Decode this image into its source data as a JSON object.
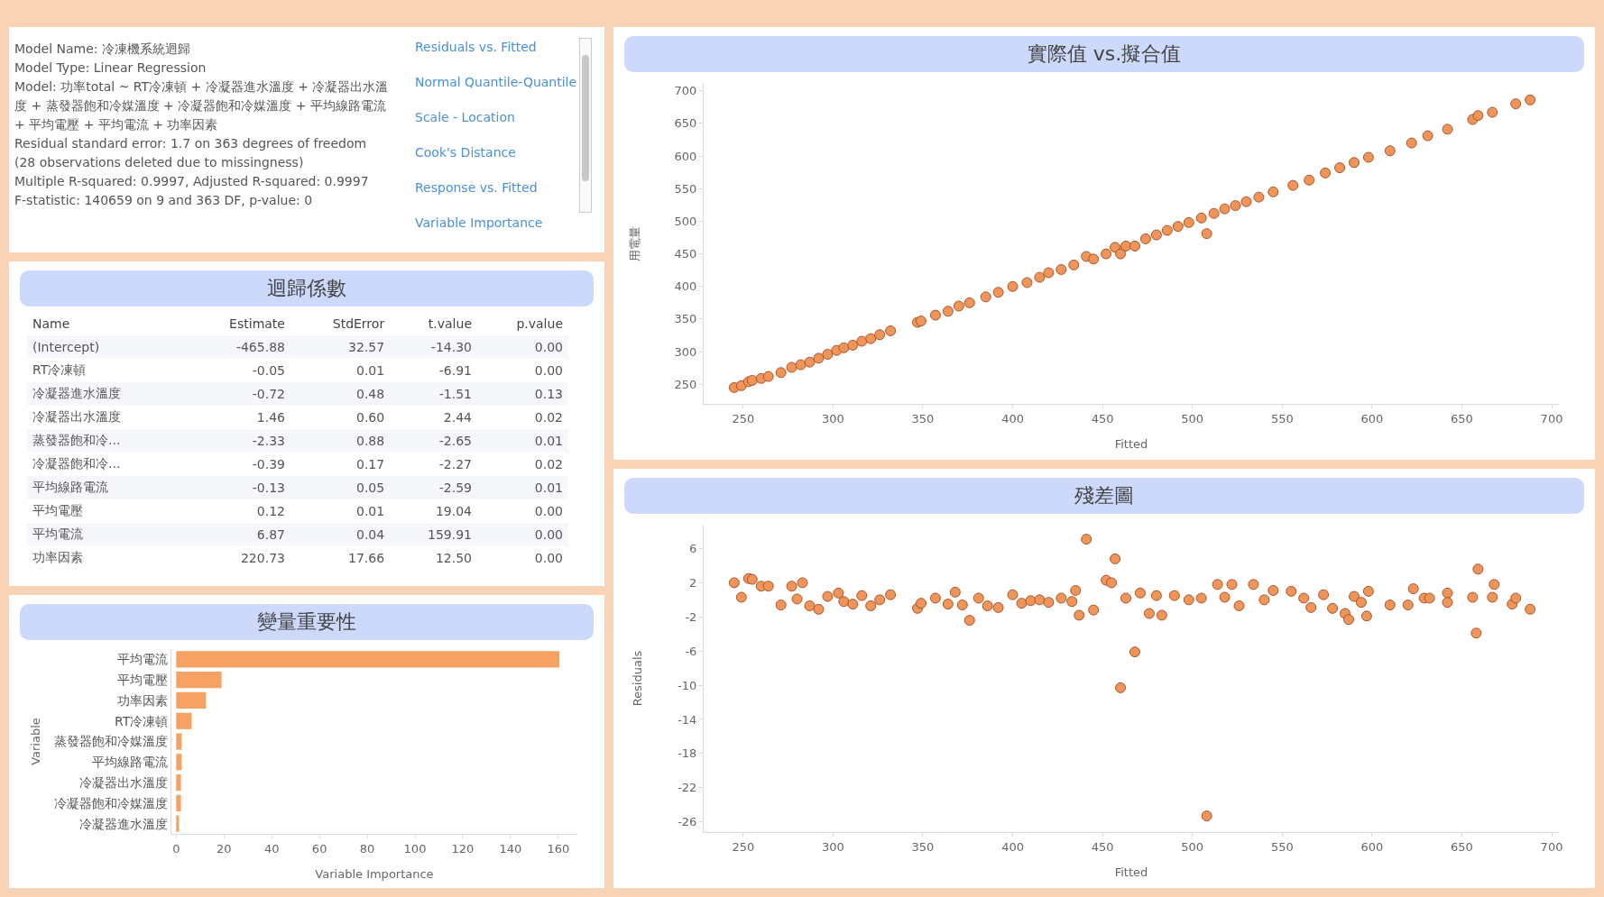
{
  "chart_data": [
    {
      "type": "other",
      "annotations": [
        "Model Name: 冷凍機系統迴歸",
        "Model Type: Linear Regression",
        "Model: 功率total ~ RT冷凍頓 + 冷凝器進水溫度 + 冷凝器出水溫度 + 蒸發器飽和冷媒溫度 + 冷凝器飽和冷媒溫度 + 平均線路電流 + 平均電壓 + 平均電流 + 功率因素",
        "Residual standard error: 1.7 on 363 degrees of freedom",
        "(28 observations deleted due to missingness)",
        "Multiple R-squared: 0.9997, Adjusted R-squared: 0.9997",
        "F-statistic: 140659 on 9 and 363 DF, p-value: 0"
      ]
    },
    {
      "type": "other",
      "annotations": [
        "Residuals vs. Fitted",
        "Normal Quantile-Quantile",
        "Scale - Location",
        "Cook's Distance",
        "Response vs. Fitted",
        "Variable Importance"
      ]
    },
    {
      "type": "other",
      "title": "迴歸係數",
      "categories": [
        "Name",
        "Estimate",
        "StdError",
        "t.value",
        "p.value"
      ],
      "annotations": [
        "(Intercept)",
        "-465.88",
        "32.57",
        "-14.30",
        "0.00",
        "RT冷凍頓",
        "-0.05",
        "0.01",
        "-6.91",
        "0.00",
        "冷凝器進水溫度",
        "-0.72",
        "0.48",
        "-1.51",
        "0.13",
        "冷凝器出水溫度",
        "1.46",
        "0.60",
        "2.44",
        "0.02",
        "蒸發器飽和冷...",
        "-2.33",
        "0.88",
        "-2.65",
        "0.01",
        "冷凝器飽和冷...",
        "-0.39",
        "0.17",
        "-2.27",
        "0.02",
        "平均線路電流",
        "-0.13",
        "0.05",
        "-2.59",
        "0.01",
        "平均電壓",
        "0.12",
        "0.01",
        "19.04",
        "0.00",
        "平均電流",
        "6.87",
        "0.04",
        "159.91",
        "0.00",
        "功率因素",
        "220.73",
        "17.66",
        "12.50",
        "0.00"
      ]
    },
    {
      "type": "bar",
      "orientation": "horizontal",
      "title": "變量重要性",
      "xlabel": "Variable Importance",
      "ylabel": "Variable",
      "color": "#f5a262",
      "categories": [
        "平均電流",
        "平均電壓",
        "功率因素",
        "RT冷凍頓",
        "蒸發器飽和冷媒溫度",
        "平均線路電流",
        "冷凝器出水溫度",
        "冷凝器飽和冷媒溫度",
        "冷凝器進水溫度"
      ],
      "values": [
        160.5,
        19,
        12.5,
        6.5,
        2.3,
        2.3,
        2,
        2,
        1.2
      ],
      "xlim": [
        -2,
        168
      ],
      "xticks": [
        0,
        20,
        40,
        60,
        80,
        100,
        120,
        140,
        160
      ]
    },
    {
      "type": "scatter",
      "title": "實際值 vs.擬合值",
      "xlabel": "Fitted",
      "ylabel": "用電量",
      "marker": "circle",
      "x": [
        245,
        249,
        253,
        255,
        260,
        264,
        271,
        277,
        282,
        287,
        292,
        297,
        302,
        306,
        311,
        316,
        321,
        326,
        332,
        347,
        349,
        357,
        364,
        370,
        376,
        385,
        392,
        400,
        408,
        415,
        420,
        427,
        434,
        441,
        445,
        452,
        457,
        460,
        463,
        468,
        474,
        480,
        486,
        492,
        498,
        505,
        508,
        512,
        518,
        524,
        530,
        537,
        545,
        556,
        565,
        574,
        582,
        590,
        598,
        610,
        622,
        631,
        642,
        656,
        659,
        667,
        680,
        688
      ],
      "series": [
        {
          "color": "#f0955a",
          "values": [
            245,
            248,
            254,
            256,
            259,
            262,
            268,
            276,
            280,
            284,
            290,
            296,
            302,
            306,
            310,
            316,
            320,
            326,
            332,
            345,
            347,
            356,
            362,
            370,
            375,
            384,
            391,
            400,
            406,
            414,
            421,
            426,
            433,
            446,
            442,
            450,
            460,
            450,
            462,
            462,
            473,
            479,
            486,
            492,
            498,
            505,
            481,
            512,
            519,
            524,
            530,
            537,
            545,
            555,
            563,
            574,
            582,
            590,
            598,
            608,
            620,
            631,
            641,
            656,
            662,
            667,
            680,
            686
          ]
        }
      ],
      "xlim": [
        228,
        704
      ],
      "xticks": [
        250,
        300,
        350,
        400,
        450,
        500,
        550,
        600,
        650,
        700
      ],
      "ylim": [
        220,
        712
      ],
      "yticks": [
        250,
        300,
        350,
        400,
        450,
        500,
        550,
        600,
        650,
        700
      ]
    },
    {
      "type": "scatter",
      "title": "殘差圖",
      "xlabel": "Fitted",
      "ylabel": "Residuals",
      "marker": "circle",
      "x": [
        245,
        249,
        253,
        255,
        260,
        264,
        271,
        277,
        280,
        283,
        287,
        292,
        297,
        303,
        306,
        311,
        316,
        321,
        326,
        332,
        347,
        349,
        357,
        364,
        368,
        372,
        376,
        381,
        386,
        392,
        400,
        405,
        410,
        415,
        420,
        427,
        433,
        435,
        437,
        441,
        445,
        452,
        455,
        457,
        460,
        463,
        468,
        471,
        476,
        480,
        483,
        490,
        498,
        505,
        508,
        514,
        518,
        522,
        526,
        534,
        540,
        545,
        555,
        562,
        566,
        573,
        578,
        585,
        587,
        590,
        594,
        597,
        598,
        610,
        620,
        623,
        629,
        632,
        642,
        642,
        656,
        658,
        659,
        667,
        668,
        678,
        680,
        688
      ],
      "series": [
        {
          "color": "#f0955a",
          "values": [
            2,
            0.3,
            2.5,
            2.4,
            1.6,
            1.6,
            -0.6,
            1.6,
            0.1,
            2,
            -0.7,
            -1.1,
            0.4,
            0.8,
            -0.2,
            -0.5,
            0.5,
            -0.7,
            0,
            0.6,
            -1,
            -0.4,
            0.2,
            -0.5,
            0.9,
            -0.6,
            -2.4,
            0.2,
            -0.7,
            -0.9,
            0.6,
            -0.4,
            -0.1,
            0,
            -0.3,
            0.2,
            -0.2,
            1.1,
            -1.8,
            7.1,
            -1.2,
            2.3,
            2,
            4.8,
            -10.3,
            0.2,
            -6.1,
            0.8,
            -1.6,
            0.5,
            -1.8,
            0.5,
            0,
            0.2,
            -25.3,
            1.8,
            0.3,
            1.8,
            -0.7,
            1.8,
            0,
            1.1,
            1,
            0.2,
            -0.9,
            0.6,
            -1,
            -1.6,
            -2.3,
            0.4,
            -0.3,
            -1.9,
            1,
            -0.6,
            -0.6,
            1.3,
            0.2,
            0.2,
            0.8,
            -0.3,
            0.3,
            -3.9,
            3.6,
            0.3,
            1.8,
            -0.5,
            0.2,
            -1.1
          ]
        }
      ],
      "xlim": [
        228,
        704
      ],
      "xticks": [
        250,
        300,
        350,
        400,
        450,
        500,
        550,
        600,
        650,
        700
      ],
      "ylim": [
        -27.2,
        8.8
      ],
      "yticks": [
        6,
        2,
        -2,
        -6,
        -10,
        -14,
        -18,
        -22,
        -26
      ]
    }
  ]
}
